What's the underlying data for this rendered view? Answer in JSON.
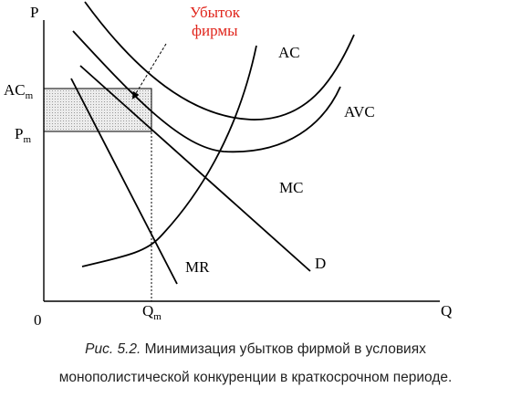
{
  "diagram": {
    "y_axis_label": "P",
    "x_axis_label": "Q",
    "origin_label": "0",
    "acm_label": {
      "base": "AC",
      "sub": "m"
    },
    "pm_label": {
      "base": "P",
      "sub": "m"
    },
    "qm_label": {
      "base": "Q",
      "sub": "m"
    },
    "loss_annotation": [
      "Убыток",
      "фирмы"
    ],
    "curve_labels": {
      "ac": "AC",
      "avc": "AVC",
      "mc": "MC",
      "d": "D",
      "mr": "MR"
    },
    "colors": {
      "annotation": "#e0241b",
      "lines": "#000000",
      "loss_area": "#d9d9d9"
    }
  },
  "caption": {
    "figure_ref": "Рис. 5.2.",
    "line1_rest": " Минимизация убытков фирмой в условиях",
    "line2": "монополистической конкуренции в краткосрочном периоде."
  }
}
